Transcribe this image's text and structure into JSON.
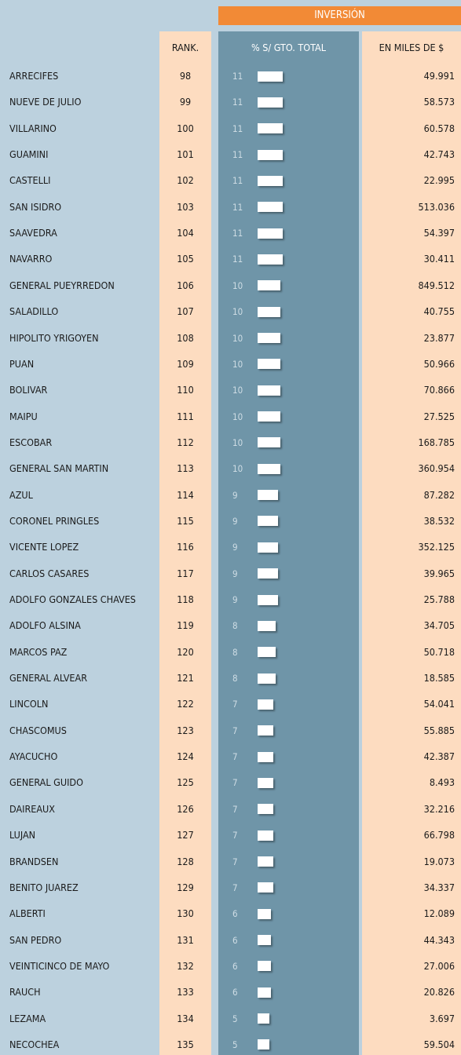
{
  "header": {
    "title": "INVERSIÓN",
    "columns": [
      "RANK.",
      "% S/ GTO. TOTAL",
      "EN MILES DE $"
    ]
  },
  "table": {
    "rows": [
      {
        "name": "ARRECIFES",
        "rank": 98,
        "pct": 11,
        "amount": "49.991"
      },
      {
        "name": "NUEVE DE JULIO",
        "rank": 99,
        "pct": 11,
        "amount": "58.573"
      },
      {
        "name": "VILLARINO",
        "rank": 100,
        "pct": 11,
        "amount": "60.578"
      },
      {
        "name": "GUAMINI",
        "rank": 101,
        "pct": 11,
        "amount": "42.743"
      },
      {
        "name": "CASTELLI",
        "rank": 102,
        "pct": 11,
        "amount": "22.995"
      },
      {
        "name": "SAN ISIDRO",
        "rank": 103,
        "pct": 11,
        "amount": "513.036"
      },
      {
        "name": "SAAVEDRA",
        "rank": 104,
        "pct": 11,
        "amount": "54.397"
      },
      {
        "name": "NAVARRO",
        "rank": 105,
        "pct": 11,
        "amount": "30.411"
      },
      {
        "name": "GENERAL PUEYRREDON",
        "rank": 106,
        "pct": 10,
        "amount": "849.512"
      },
      {
        "name": "SALADILLO",
        "rank": 107,
        "pct": 10,
        "amount": "40.755"
      },
      {
        "name": "HIPOLITO YRIGOYEN",
        "rank": 108,
        "pct": 10,
        "amount": "23.877"
      },
      {
        "name": "PUAN",
        "rank": 109,
        "pct": 10,
        "amount": "50.966"
      },
      {
        "name": "BOLIVAR",
        "rank": 110,
        "pct": 10,
        "amount": "70.866"
      },
      {
        "name": "MAIPU",
        "rank": 111,
        "pct": 10,
        "amount": "27.525"
      },
      {
        "name": "ESCOBAR",
        "rank": 112,
        "pct": 10,
        "amount": "168.785"
      },
      {
        "name": "GENERAL SAN MARTIN",
        "rank": 113,
        "pct": 10,
        "amount": "360.954"
      },
      {
        "name": "AZUL",
        "rank": 114,
        "pct": 9,
        "amount": "87.282"
      },
      {
        "name": "CORONEL PRINGLES",
        "rank": 115,
        "pct": 9,
        "amount": "38.532"
      },
      {
        "name": "VICENTE LOPEZ",
        "rank": 116,
        "pct": 9,
        "amount": "352.125"
      },
      {
        "name": "CARLOS CASARES",
        "rank": 117,
        "pct": 9,
        "amount": "39.965"
      },
      {
        "name": "ADOLFO GONZALES CHAVES",
        "rank": 118,
        "pct": 9,
        "amount": "25.788"
      },
      {
        "name": "ADOLFO ALSINA",
        "rank": 119,
        "pct": 8,
        "amount": "34.705"
      },
      {
        "name": "MARCOS PAZ",
        "rank": 120,
        "pct": 8,
        "amount": "50.718"
      },
      {
        "name": "GENERAL ALVEAR",
        "rank": 121,
        "pct": 8,
        "amount": "18.585"
      },
      {
        "name": "LINCOLN",
        "rank": 122,
        "pct": 7,
        "amount": "54.041"
      },
      {
        "name": "CHASCOMUS",
        "rank": 123,
        "pct": 7,
        "amount": "55.885"
      },
      {
        "name": "AYACUCHO",
        "rank": 124,
        "pct": 7,
        "amount": "42.387"
      },
      {
        "name": "GENERAL GUIDO",
        "rank": 125,
        "pct": 7,
        "amount": "8.493"
      },
      {
        "name": "DAIREAUX",
        "rank": 126,
        "pct": 7,
        "amount": "32.216"
      },
      {
        "name": "LUJAN",
        "rank": 127,
        "pct": 7,
        "amount": "66.798"
      },
      {
        "name": "BRANDSEN",
        "rank": 128,
        "pct": 7,
        "amount": "19.073"
      },
      {
        "name": "BENITO JUAREZ",
        "rank": 129,
        "pct": 7,
        "amount": "34.337"
      },
      {
        "name": "ALBERTI",
        "rank": 130,
        "pct": 6,
        "amount": "12.089"
      },
      {
        "name": "SAN PEDRO",
        "rank": 131,
        "pct": 6,
        "amount": "44.343"
      },
      {
        "name": "VEINTICINCO DE MAYO",
        "rank": 132,
        "pct": 6,
        "amount": "27.006"
      },
      {
        "name": "RAUCH",
        "rank": 133,
        "pct": 6,
        "amount": "20.826"
      },
      {
        "name": "LEZAMA",
        "rank": 134,
        "pct": 5,
        "amount": "3.697"
      },
      {
        "name": "NECOCHEA",
        "rank": 135,
        "pct": 5,
        "amount": "59.504"
      }
    ]
  }
}
